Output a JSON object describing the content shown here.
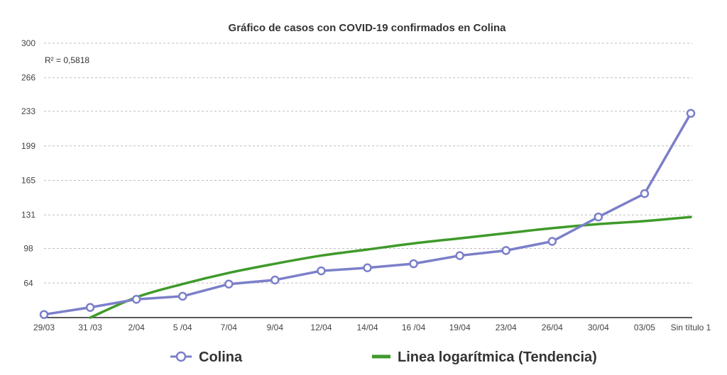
{
  "chart_data": {
    "type": "line",
    "title": "Gráfico de casos con COVID-19 confirmados en Colina",
    "annotation": "R² = 0,5818",
    "xlabel": "",
    "ylabel": "",
    "ylim": [
      30,
      300
    ],
    "yticks": [
      "300",
      "266",
      "233",
      "199",
      "165",
      "131",
      "98",
      "64"
    ],
    "ytick_values": [
      300,
      266,
      233,
      199,
      165,
      131,
      98,
      64
    ],
    "categories": [
      "29/03",
      "31 /03",
      "2/04",
      "5 /04",
      "7/04",
      "9/04",
      "12/04",
      "14/04",
      "16 /04",
      "19/04",
      "23/04",
      "26/04",
      "30/04",
      "03/05",
      "Sin título 1"
    ],
    "grid": true,
    "legend_position": "bottom",
    "series": [
      {
        "name": "Colina",
        "color": "#7b7fc9",
        "values": [
          33,
          40,
          48,
          51,
          63,
          67,
          76,
          79,
          83,
          91,
          96,
          105,
          129,
          152,
          231
        ]
      }
    ],
    "trendline": {
      "name": "Linea logarítmica (Tendencia)",
      "color": "#3f9a2a",
      "kind": "logarithmic",
      "values": [
        null,
        30,
        50,
        63,
        74,
        83,
        91,
        97,
        103,
        108,
        113,
        118,
        122,
        125,
        129
      ]
    }
  }
}
